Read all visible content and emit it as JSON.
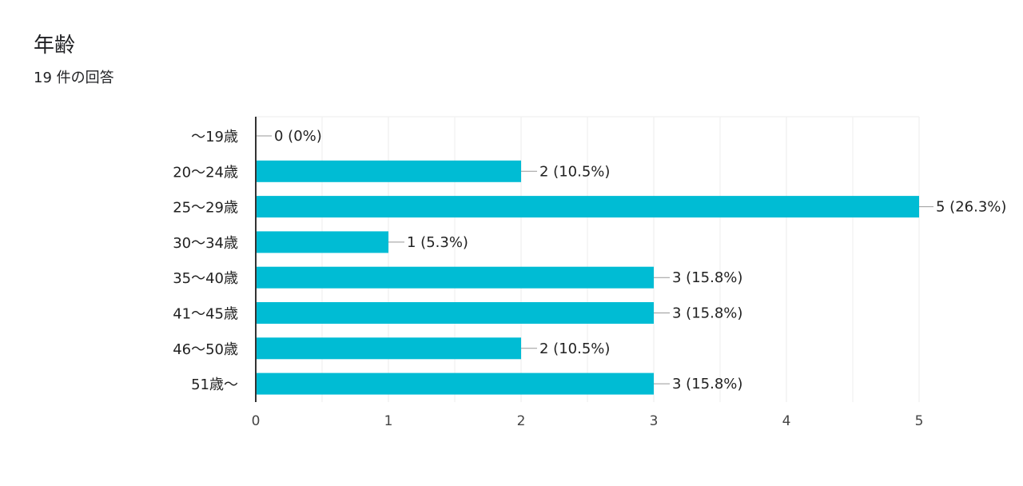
{
  "header": {
    "title": "年齢",
    "subtitle": "19 件の回答"
  },
  "colors": {
    "bar": "#00bcd4",
    "grid": "#eeeeee",
    "axis": "#333333",
    "leader": "#999999"
  },
  "chart_data": {
    "type": "bar",
    "orientation": "horizontal",
    "categories": [
      "〜19歳",
      "20〜24歳",
      "25〜29歳",
      "30〜34歳",
      "35〜40歳",
      "41〜45歳",
      "46〜50歳",
      "51歳〜"
    ],
    "values": [
      0,
      2,
      5,
      1,
      3,
      3,
      2,
      3
    ],
    "data_labels": [
      "0 (0%)",
      "2 (10.5%)",
      "5 (26.3%)",
      "1 (5.3%)",
      "3 (15.8%)",
      "3 (15.8%)",
      "2 (10.5%)",
      "3 (15.8%)"
    ],
    "xlim": [
      0,
      5
    ],
    "xticks": [
      "0",
      "1",
      "2",
      "3",
      "4",
      "5"
    ],
    "grid": true
  }
}
